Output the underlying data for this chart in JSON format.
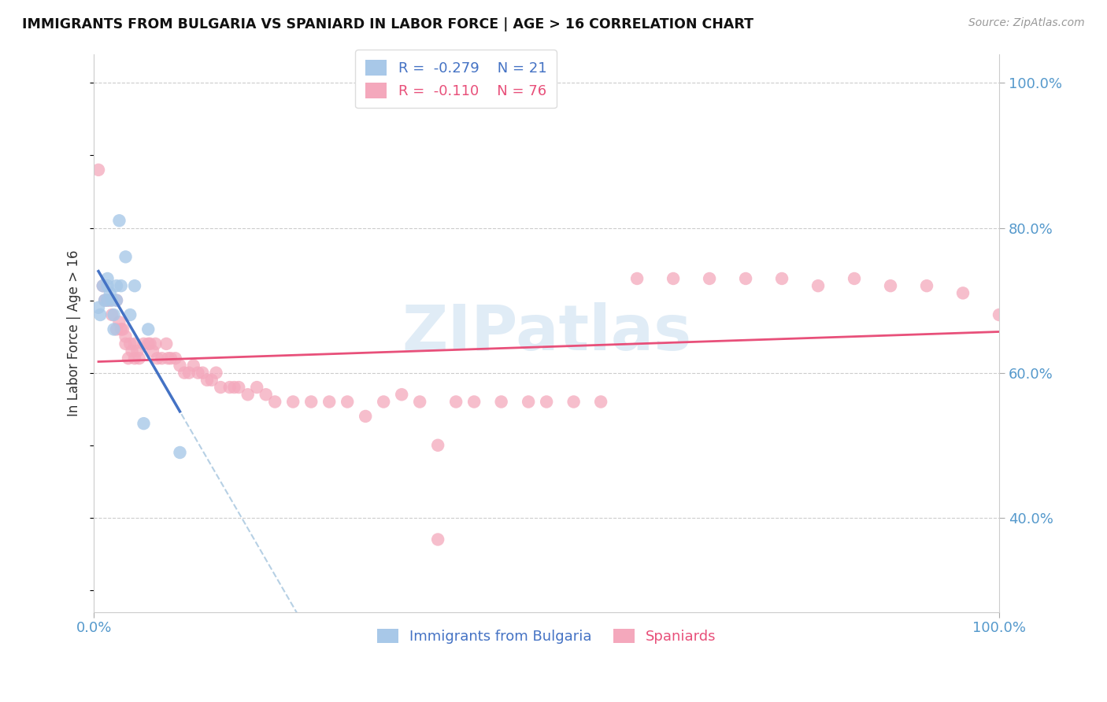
{
  "title": "IMMIGRANTS FROM BULGARIA VS SPANIARD IN LABOR FORCE | AGE > 16 CORRELATION CHART",
  "source": "Source: ZipAtlas.com",
  "ylabel": "In Labor Force | Age > 16",
  "xlim": [
    0.0,
    1.0
  ],
  "y_tick_positions": [
    0.4,
    0.6,
    0.8,
    1.0
  ],
  "legend_r_bulgaria": "R =  -0.279",
  "legend_n_bulgaria": "N = 21",
  "legend_r_spaniard": "R =  -0.110",
  "legend_n_spaniard": "N = 76",
  "color_bulgaria": "#a8c8e8",
  "color_spaniard": "#f4a8bc",
  "color_bulgaria_line": "#4472c4",
  "color_spaniard_line": "#e8507a",
  "color_dashed_line": "#aac8e0",
  "watermark_color": "#cce0f0",
  "bulgaria_scatter_x": [
    0.005,
    0.007,
    0.01,
    0.012,
    0.015,
    0.015,
    0.015,
    0.018,
    0.02,
    0.022,
    0.022,
    0.025,
    0.025,
    0.028,
    0.03,
    0.035,
    0.04,
    0.045,
    0.055,
    0.06,
    0.095
  ],
  "bulgaria_scatter_y": [
    0.69,
    0.68,
    0.72,
    0.7,
    0.73,
    0.72,
    0.7,
    0.71,
    0.7,
    0.68,
    0.66,
    0.72,
    0.7,
    0.81,
    0.72,
    0.76,
    0.68,
    0.72,
    0.53,
    0.66,
    0.49
  ],
  "spaniard_scatter_x": [
    0.005,
    0.01,
    0.012,
    0.015,
    0.018,
    0.02,
    0.025,
    0.025,
    0.028,
    0.03,
    0.032,
    0.035,
    0.035,
    0.038,
    0.04,
    0.042,
    0.045,
    0.045,
    0.048,
    0.05,
    0.055,
    0.06,
    0.062,
    0.065,
    0.068,
    0.07,
    0.075,
    0.08,
    0.082,
    0.085,
    0.09,
    0.095,
    0.1,
    0.105,
    0.11,
    0.115,
    0.12,
    0.125,
    0.13,
    0.135,
    0.14,
    0.15,
    0.155,
    0.16,
    0.17,
    0.18,
    0.19,
    0.2,
    0.22,
    0.24,
    0.26,
    0.28,
    0.3,
    0.32,
    0.34,
    0.36,
    0.38,
    0.4,
    0.42,
    0.45,
    0.48,
    0.5,
    0.53,
    0.56,
    0.6,
    0.64,
    0.68,
    0.72,
    0.76,
    0.8,
    0.84,
    0.88,
    0.92,
    0.96,
    1.0,
    0.38
  ],
  "spaniard_scatter_y": [
    0.88,
    0.72,
    0.7,
    0.7,
    0.7,
    0.68,
    0.7,
    0.66,
    0.67,
    0.66,
    0.66,
    0.65,
    0.64,
    0.62,
    0.64,
    0.63,
    0.64,
    0.62,
    0.63,
    0.62,
    0.64,
    0.64,
    0.64,
    0.63,
    0.64,
    0.62,
    0.62,
    0.64,
    0.62,
    0.62,
    0.62,
    0.61,
    0.6,
    0.6,
    0.61,
    0.6,
    0.6,
    0.59,
    0.59,
    0.6,
    0.58,
    0.58,
    0.58,
    0.58,
    0.57,
    0.58,
    0.57,
    0.56,
    0.56,
    0.56,
    0.56,
    0.56,
    0.54,
    0.56,
    0.57,
    0.56,
    0.5,
    0.56,
    0.56,
    0.56,
    0.56,
    0.56,
    0.56,
    0.56,
    0.73,
    0.73,
    0.73,
    0.73,
    0.73,
    0.72,
    0.73,
    0.72,
    0.72,
    0.71,
    0.68,
    0.37
  ]
}
